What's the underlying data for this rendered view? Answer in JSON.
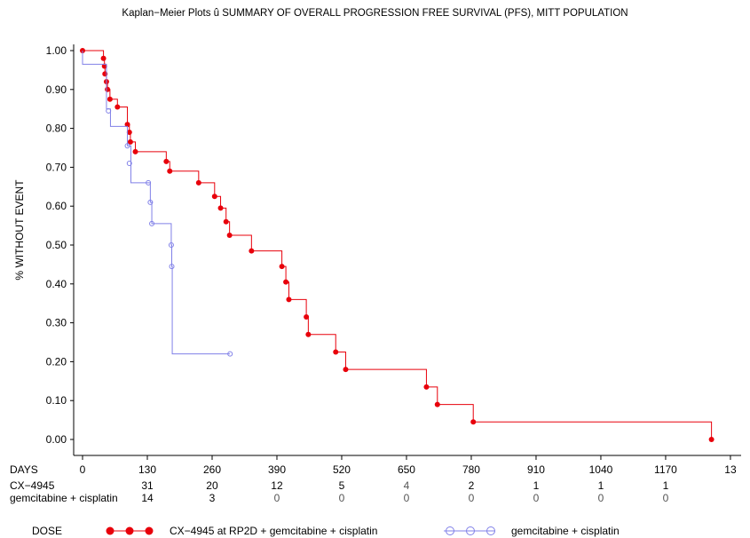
{
  "chart_data": {
    "type": "line",
    "step": true,
    "title": "Kaplan−Meier Plots û SUMMARY OF OVERALL PROGRESSION FREE SURVIVAL (PFS), MITT POPULATION",
    "xlabel": "DAYS",
    "ylabel": "% WITHOUT EVENT",
    "xlim": [
      0,
      1300
    ],
    "ylim": [
      0,
      1.0
    ],
    "x_ticks": [
      "0",
      "130",
      "260",
      "390",
      "520",
      "650",
      "780",
      "910",
      "1040",
      "1170",
      "13"
    ],
    "y_ticks": [
      "0.00",
      "0.10",
      "0.20",
      "0.30",
      "0.40",
      "0.50",
      "0.60",
      "0.70",
      "0.80",
      "0.90",
      "1.00"
    ],
    "grid": false,
    "series": [
      {
        "name": "CX−4945 at RP2D + gemcitabine + cisplatin",
        "color": "#e8000b",
        "marker": "filled-circle",
        "points": [
          [
            0,
            1.0
          ],
          [
            42,
            0.98
          ],
          [
            44,
            0.96
          ],
          [
            45,
            0.94
          ],
          [
            48,
            0.92
          ],
          [
            50,
            0.9
          ],
          [
            55,
            0.875
          ],
          [
            70,
            0.855
          ],
          [
            90,
            0.81
          ],
          [
            94,
            0.79
          ],
          [
            96,
            0.765
          ],
          [
            106,
            0.74
          ],
          [
            168,
            0.715
          ],
          [
            175,
            0.69
          ],
          [
            233,
            0.66
          ],
          [
            265,
            0.625
          ],
          [
            277,
            0.595
          ],
          [
            288,
            0.56
          ],
          [
            295,
            0.525
          ],
          [
            339,
            0.485
          ],
          [
            400,
            0.445
          ],
          [
            408,
            0.405
          ],
          [
            414,
            0.36
          ],
          [
            449,
            0.315
          ],
          [
            453,
            0.27
          ],
          [
            508,
            0.225
          ],
          [
            528,
            0.18
          ],
          [
            690,
            0.135
          ],
          [
            712,
            0.09
          ],
          [
            784,
            0.045
          ],
          [
            1262,
            0.0
          ]
        ]
      },
      {
        "name": "gemcitabine + cisplatin",
        "color": "#8080e8",
        "marker": "open-circle",
        "points": [
          [
            0,
            1.0
          ],
          [
            0,
            0.965
          ],
          [
            42,
            0.965
          ],
          [
            48,
            0.85
          ],
          [
            56,
            0.805
          ],
          [
            90,
            0.755
          ],
          [
            97,
            0.71
          ],
          [
            97,
            0.66
          ],
          [
            133,
            0.66
          ],
          [
            136,
            0.61
          ],
          [
            139,
            0.555
          ],
          [
            178,
            0.5
          ],
          [
            179,
            0.445
          ],
          [
            180,
            0.22
          ],
          [
            296,
            0.22
          ]
        ],
        "marker_points": [
          [
            52,
            0.845
          ],
          [
            90,
            0.755
          ],
          [
            94,
            0.71
          ],
          [
            132,
            0.66
          ],
          [
            136,
            0.61
          ],
          [
            139,
            0.555
          ],
          [
            178,
            0.5
          ],
          [
            179,
            0.445
          ],
          [
            296,
            0.22
          ]
        ]
      }
    ],
    "at_risk": {
      "header": "DAYS",
      "rows": [
        {
          "label": "CX−4945",
          "values": [
            "31",
            "20",
            "12",
            "5",
            "4",
            "2",
            "1",
            "1",
            "1"
          ]
        },
        {
          "label": "gemcitabine + cisplatin",
          "values": [
            "14",
            "3",
            "0",
            "0",
            "0",
            "0",
            "0",
            "0",
            "0"
          ]
        }
      ]
    },
    "legend": {
      "title": "DOSE",
      "placement": "bottom"
    }
  }
}
